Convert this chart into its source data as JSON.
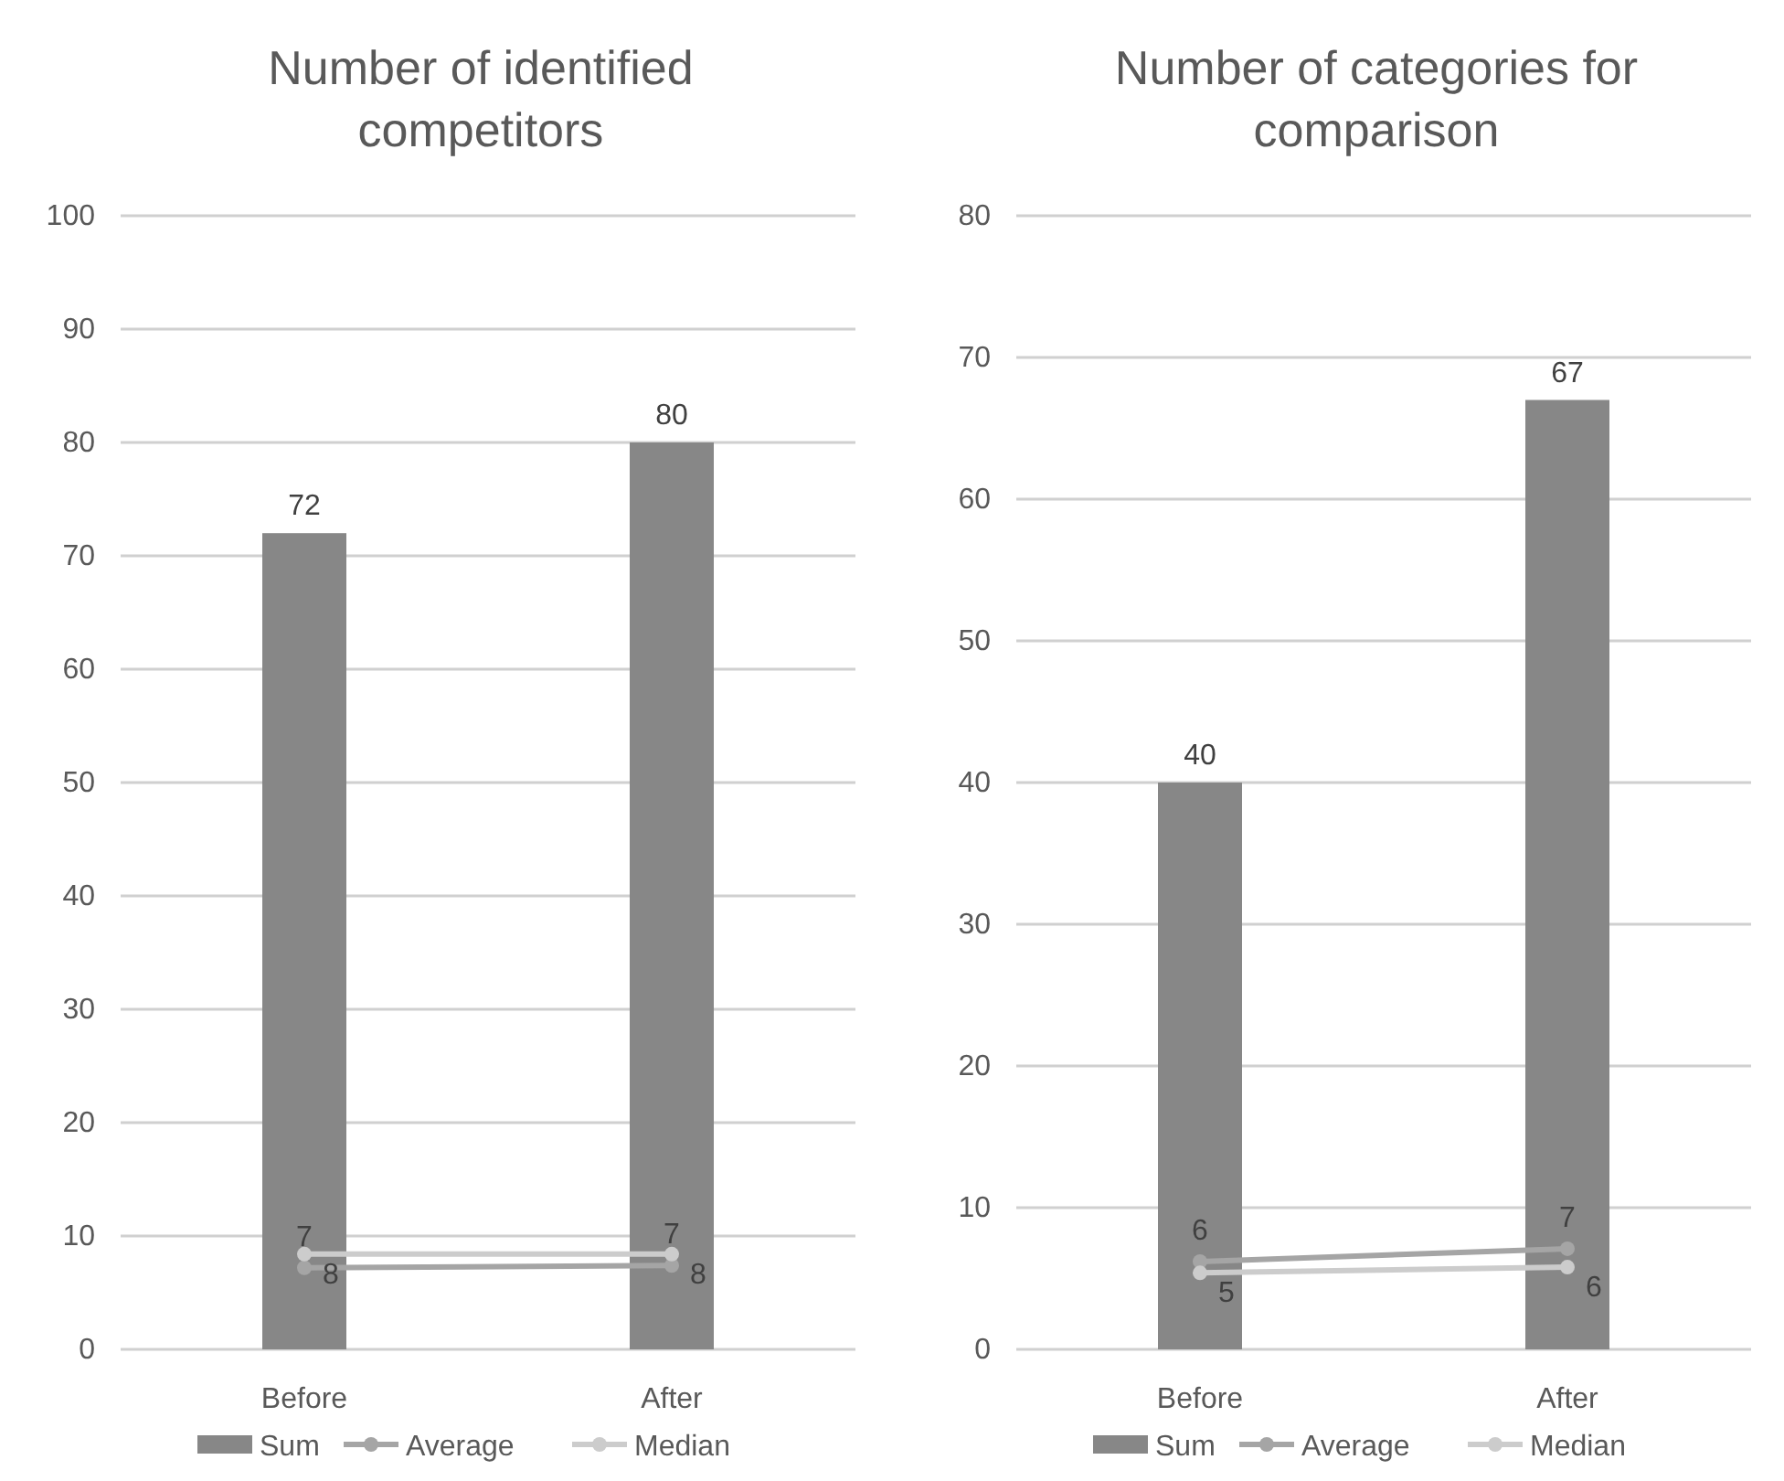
{
  "chart_data": [
    {
      "type": "bar",
      "title": "Number of identified competitors",
      "categories": [
        "Before",
        "After"
      ],
      "ylim": [
        0,
        100
      ],
      "yticks": [
        0,
        10,
        20,
        30,
        40,
        50,
        60,
        70,
        80,
        90,
        100
      ],
      "grid": "y",
      "legend": "bottom",
      "marker": "circle",
      "series": [
        {
          "name": "Sum",
          "color": "#878787",
          "values": [
            72,
            80
          ],
          "value_labels": [
            "72",
            "80"
          ]
        },
        {
          "name": "Average",
          "type": "line",
          "color": "#a5a5a5",
          "values": [
            7.2,
            7.4
          ],
          "value_labels": [
            "7",
            "7"
          ]
        },
        {
          "name": "Median",
          "type": "line",
          "color": "#cccccc",
          "values": [
            8.4,
            8.4
          ],
          "value_labels": [
            "8",
            "8"
          ]
        }
      ]
    },
    {
      "type": "bar",
      "title": "Number of categories for comparison",
      "categories": [
        "Before",
        "After"
      ],
      "ylim": [
        0,
        80
      ],
      "yticks": [
        0,
        10,
        20,
        30,
        40,
        50,
        60,
        70,
        80
      ],
      "grid": "y",
      "legend": "bottom",
      "marker": "circle",
      "series": [
        {
          "name": "Sum",
          "color": "#878787",
          "values": [
            40,
            67
          ],
          "value_labels": [
            "40",
            "67"
          ]
        },
        {
          "name": "Average",
          "type": "line",
          "color": "#a5a5a5",
          "values": [
            6.2,
            7.1
          ],
          "value_labels": [
            "6",
            "7"
          ]
        },
        {
          "name": "Median",
          "type": "line",
          "color": "#cccccc",
          "values": [
            5.4,
            5.8
          ],
          "value_labels": [
            "5",
            "6"
          ]
        }
      ]
    }
  ]
}
